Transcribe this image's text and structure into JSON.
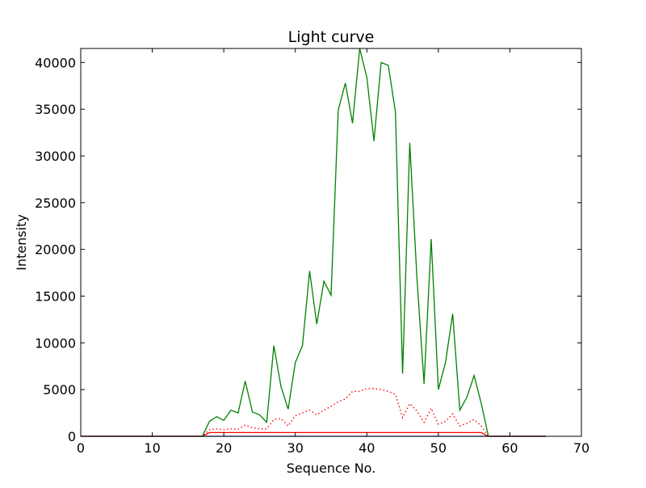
{
  "chart_data": {
    "type": "line",
    "title": "Light curve",
    "xlabel": "Sequence No.",
    "ylabel": "Intensity",
    "xlim": [
      0,
      70
    ],
    "ylim": [
      0,
      41500
    ],
    "xticks": [
      0,
      10,
      20,
      30,
      40,
      50,
      60,
      70
    ],
    "yticks": [
      0,
      5000,
      10000,
      15000,
      20000,
      25000,
      30000,
      35000,
      40000
    ],
    "grid": false,
    "x": [
      0,
      1,
      2,
      3,
      4,
      5,
      6,
      7,
      8,
      9,
      10,
      11,
      12,
      13,
      14,
      15,
      16,
      17,
      18,
      19,
      20,
      21,
      22,
      23,
      24,
      25,
      26,
      27,
      28,
      29,
      30,
      31,
      32,
      33,
      34,
      35,
      36,
      37,
      38,
      39,
      40,
      41,
      42,
      43,
      44,
      45,
      46,
      47,
      48,
      49,
      50,
      51,
      52,
      53,
      54,
      55,
      56,
      57,
      58,
      59,
      60,
      61,
      62,
      63,
      64,
      65
    ],
    "series": [
      {
        "color": "#008000",
        "style": "solid",
        "values": [
          0,
          0,
          0,
          0,
          0,
          0,
          0,
          0,
          0,
          0,
          0,
          0,
          0,
          0,
          0,
          0,
          0,
          0,
          1600,
          2100,
          1700,
          2800,
          2500,
          5900,
          2600,
          2300,
          1500,
          9700,
          5300,
          2900,
          7900,
          9700,
          17700,
          12000,
          16600,
          15100,
          34900,
          37800,
          33500,
          41500,
          38400,
          31600,
          40000,
          39700,
          34700,
          6700,
          31400,
          17000,
          5600,
          21100,
          5000,
          7900,
          13100,
          2800,
          4200,
          6500,
          3500,
          0,
          0,
          0,
          0,
          0,
          0,
          0,
          0,
          0
        ]
      },
      {
        "color": "#ff0000",
        "style": "dotted",
        "values": [
          0,
          0,
          0,
          0,
          0,
          0,
          0,
          0,
          0,
          0,
          0,
          0,
          0,
          0,
          0,
          0,
          0,
          0,
          700,
          800,
          700,
          800,
          750,
          1200,
          900,
          800,
          800,
          1800,
          1900,
          1100,
          2200,
          2500,
          2800,
          2300,
          2800,
          3200,
          3700,
          4000,
          4800,
          4800,
          5100,
          5100,
          5000,
          4800,
          4500,
          2000,
          3500,
          2700,
          1500,
          3000,
          1300,
          1600,
          2400,
          1100,
          1400,
          1800,
          1100,
          0,
          0,
          0,
          0,
          0,
          0,
          0,
          0,
          0
        ]
      },
      {
        "color": "#ff0000",
        "style": "solid",
        "values": [
          0,
          0,
          0,
          0,
          0,
          0,
          0,
          0,
          0,
          0,
          0,
          0,
          0,
          0,
          0,
          0,
          0,
          0,
          400,
          400,
          400,
          400,
          400,
          400,
          400,
          400,
          400,
          400,
          400,
          400,
          400,
          400,
          400,
          400,
          400,
          400,
          400,
          400,
          400,
          400,
          400,
          400,
          400,
          400,
          400,
          400,
          400,
          400,
          400,
          400,
          400,
          400,
          400,
          400,
          400,
          400,
          400,
          0,
          0,
          0,
          0,
          0,
          0,
          0,
          0,
          0
        ]
      },
      {
        "color": "#0000ff",
        "style": "solid",
        "values": [
          0,
          0,
          0,
          0,
          0,
          0,
          0,
          0,
          0,
          0,
          0,
          0,
          0,
          0,
          0,
          0,
          0,
          0,
          0,
          0,
          0,
          0,
          0,
          0,
          0,
          0,
          0,
          0,
          0,
          0,
          0,
          0,
          0,
          0,
          0,
          0,
          0,
          0,
          0,
          0,
          0,
          0,
          0,
          0,
          0,
          0,
          0,
          0,
          0,
          0,
          0,
          0,
          0,
          0,
          0,
          0,
          0,
          0,
          0,
          0,
          0,
          0,
          0,
          0,
          0,
          0
        ]
      }
    ]
  }
}
